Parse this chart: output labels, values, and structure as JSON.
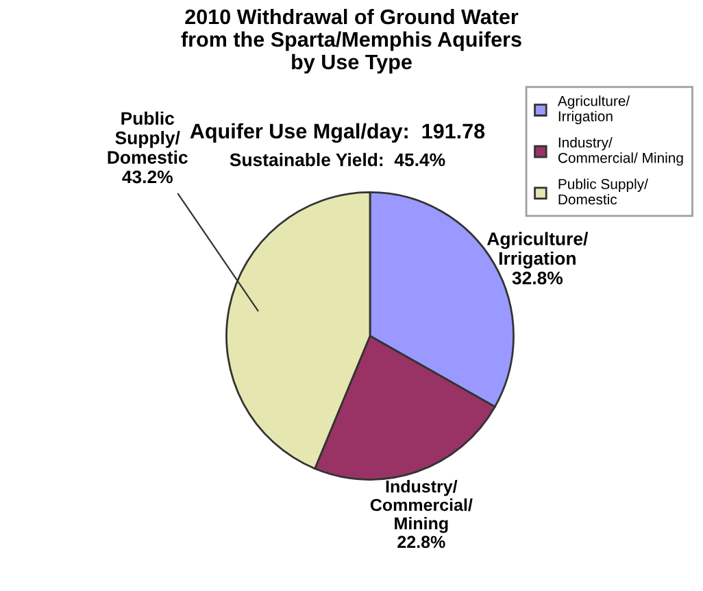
{
  "chart_data": {
    "type": "pie",
    "title": "2010 Withdrawal of Ground Water\nfrom the Sparta/Memphis Aquifers\nby Use Type",
    "annotations": [
      "Aquifer Use Mgal/day:  191.78",
      "Sustainable Yield:  45.4%"
    ],
    "categories": [
      "Agriculture/ Irrigation",
      "Industry/ Commercial/ Mining",
      "Public Supply/ Domestic"
    ],
    "values": [
      32.8,
      22.8,
      43.2
    ],
    "value_labels": [
      "32.8%",
      "22.8%",
      "43.2%"
    ],
    "colors": [
      "#9999ff",
      "#993366",
      "#e6e6b0"
    ],
    "legend": "top right"
  }
}
